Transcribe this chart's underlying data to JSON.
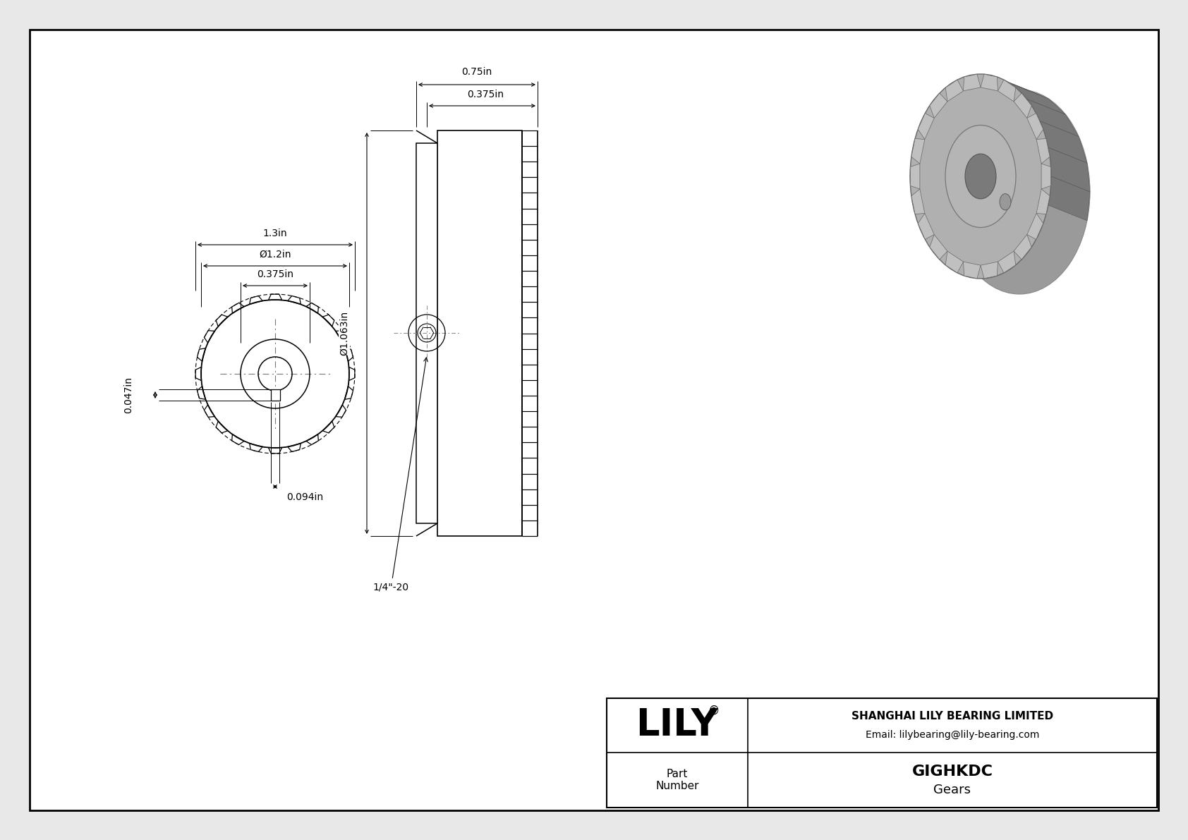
{
  "bg_color": "#e8e8e8",
  "drawing_bg": "#ffffff",
  "line_color": "#000000",
  "dim_color": "#000000",
  "title_block": {
    "company": "SHANGHAI LILY BEARING LIMITED",
    "email": "Email: lilybearing@lily-bearing.com",
    "logo": "LILY",
    "logo_reg": "®",
    "part_label": "Part\nNumber",
    "part_number": "GIGHKDC",
    "category": "Gears"
  },
  "dims": {
    "front_width_1p3": "1.3in",
    "front_diam_1p2": "Ø1.2in",
    "front_width_0p375": "0.375in",
    "side_width_0p75": "0.75in",
    "side_width_0p375": "0.375in",
    "side_height": "Ø1.063in",
    "bottom_key": "0.094in",
    "left_key": "0.047in",
    "thread": "1/4\"-20"
  }
}
